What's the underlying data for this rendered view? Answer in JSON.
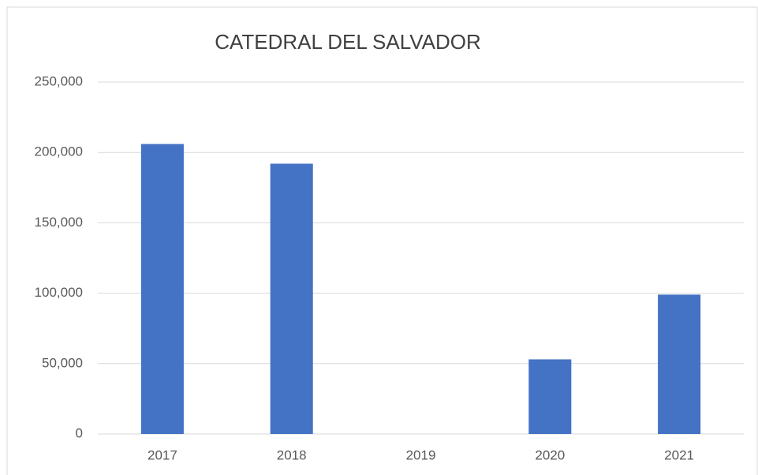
{
  "chart_data": {
    "type": "bar",
    "title": "CATEDRAL DEL SALVADOR",
    "categories": [
      "2017",
      "2018",
      "2019",
      "2020",
      "2021"
    ],
    "values": [
      206000,
      192000,
      0,
      53000,
      99000
    ],
    "color": "#4472c4",
    "ylim": [
      0,
      250000
    ],
    "yticks": [
      0,
      {
        "value": 50000,
        "label": "50,000"
      },
      {
        "value": 100000,
        "label": "100,000"
      },
      {
        "value": 150000,
        "label": "150,000"
      },
      {
        "value": 200000,
        "label": "200,000"
      },
      {
        "value": 250000,
        "label": "250,000"
      }
    ],
    "grid": true
  }
}
